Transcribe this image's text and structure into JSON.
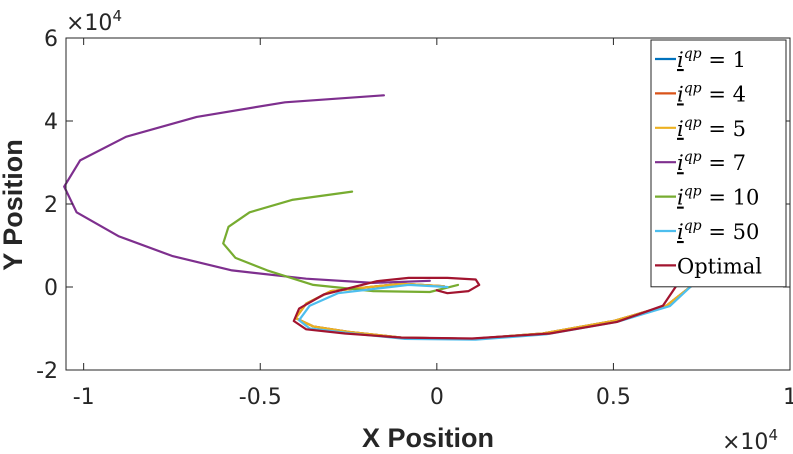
{
  "chart_data": {
    "type": "line",
    "xlabel": "X Position",
    "ylabel": "Y Position",
    "x_multiplier": "×10",
    "x_multiplier_exp": "4",
    "y_multiplier": "×10",
    "y_multiplier_exp": "4",
    "xlim": [
      -1.05,
      1.0
    ],
    "ylim": [
      -2,
      6
    ],
    "x_ticks": [
      -1,
      -0.5,
      0,
      0.5,
      1
    ],
    "x_tick_labels": [
      "-1",
      "-0.5",
      "0",
      "0.5",
      "1"
    ],
    "y_ticks": [
      -2,
      0,
      2,
      4,
      6
    ],
    "y_tick_labels": [
      "-2",
      "0",
      "2",
      "4",
      "6"
    ],
    "grid": false,
    "legend_position": "top-right",
    "series": [
      {
        "name": "i^{qp} = 1",
        "legend_value": "1",
        "color": "#0072BD",
        "x": [
          0.02,
          -0.1,
          -0.3,
          -0.37,
          -0.4,
          -0.35,
          -0.25,
          -0.1,
          0.1,
          0.3,
          0.5,
          0.65,
          0.72
        ],
        "y": [
          0.02,
          0.08,
          -0.1,
          -0.4,
          -0.75,
          -0.95,
          -1.08,
          -1.22,
          -1.25,
          -1.12,
          -0.82,
          -0.45,
          0.02
        ]
      },
      {
        "name": "i^{qp} = 4",
        "legend_value": "4",
        "color": "#D95319",
        "x": [
          0.02,
          -0.1,
          -0.3,
          -0.37,
          -0.4,
          -0.35,
          -0.25,
          -0.1,
          0.1,
          0.3,
          0.5,
          0.65,
          0.72
        ],
        "y": [
          0.02,
          0.08,
          -0.1,
          -0.4,
          -0.75,
          -0.95,
          -1.08,
          -1.22,
          -1.25,
          -1.12,
          -0.82,
          -0.45,
          0.02
        ]
      },
      {
        "name": "i^{qp} = 5",
        "legend_value": "5",
        "color": "#EDB120",
        "x": [
          0.02,
          -0.1,
          -0.3,
          -0.37,
          -0.4,
          -0.35,
          -0.25,
          -0.1,
          0.1,
          0.3,
          0.5,
          0.65,
          0.72
        ],
        "y": [
          0.02,
          0.08,
          -0.1,
          -0.4,
          -0.75,
          -0.95,
          -1.08,
          -1.22,
          -1.25,
          -1.12,
          -0.82,
          -0.45,
          0.02
        ]
      },
      {
        "name": "i^{qp} = 7",
        "legend_value": "7",
        "color": "#7E2F8E",
        "x": [
          -0.15,
          -0.43,
          -0.68,
          -0.88,
          -1.01,
          -1.055,
          -1.02,
          -0.9,
          -0.75,
          -0.58,
          -0.37,
          -0.18,
          -0.02
        ],
        "y": [
          4.62,
          4.45,
          4.1,
          3.62,
          3.05,
          2.42,
          1.8,
          1.22,
          0.75,
          0.4,
          0.2,
          0.1,
          0.15
        ]
      },
      {
        "name": "i^{qp} = 10",
        "legend_value": "10",
        "color": "#77AC30",
        "x": [
          -0.24,
          -0.41,
          -0.53,
          -0.59,
          -0.605,
          -0.57,
          -0.48,
          -0.35,
          -0.18,
          -0.02,
          0.06
        ],
        "y": [
          2.3,
          2.1,
          1.8,
          1.45,
          1.05,
          0.7,
          0.4,
          0.05,
          -0.1,
          -0.12,
          0.05
        ]
      },
      {
        "name": "i^{qp} = 50",
        "legend_value": "50",
        "color": "#4DBEEE",
        "x": [
          0.03,
          -0.08,
          -0.28,
          -0.36,
          -0.39,
          -0.36,
          -0.24,
          -0.09,
          0.11,
          0.31,
          0.51,
          0.66,
          0.72
        ],
        "y": [
          0.0,
          0.05,
          -0.15,
          -0.45,
          -0.8,
          -1.0,
          -1.12,
          -1.25,
          -1.27,
          -1.14,
          -0.84,
          -0.46,
          0.02
        ]
      },
      {
        "name": "Optimal",
        "legend_value": "Optimal",
        "color": "#A2142F",
        "x": [
          0.0,
          0.03,
          0.09,
          0.12,
          0.11,
          0.03,
          -0.08,
          -0.17,
          -0.32,
          -0.39,
          -0.405,
          -0.37,
          -0.26,
          -0.1,
          0.1,
          0.32,
          0.51,
          0.64,
          0.68
        ],
        "y": [
          -0.08,
          -0.15,
          -0.1,
          0.05,
          0.18,
          0.22,
          0.22,
          0.14,
          -0.18,
          -0.52,
          -0.82,
          -1.02,
          -1.12,
          -1.22,
          -1.24,
          -1.12,
          -0.84,
          -0.45,
          0.05
        ]
      }
    ]
  }
}
